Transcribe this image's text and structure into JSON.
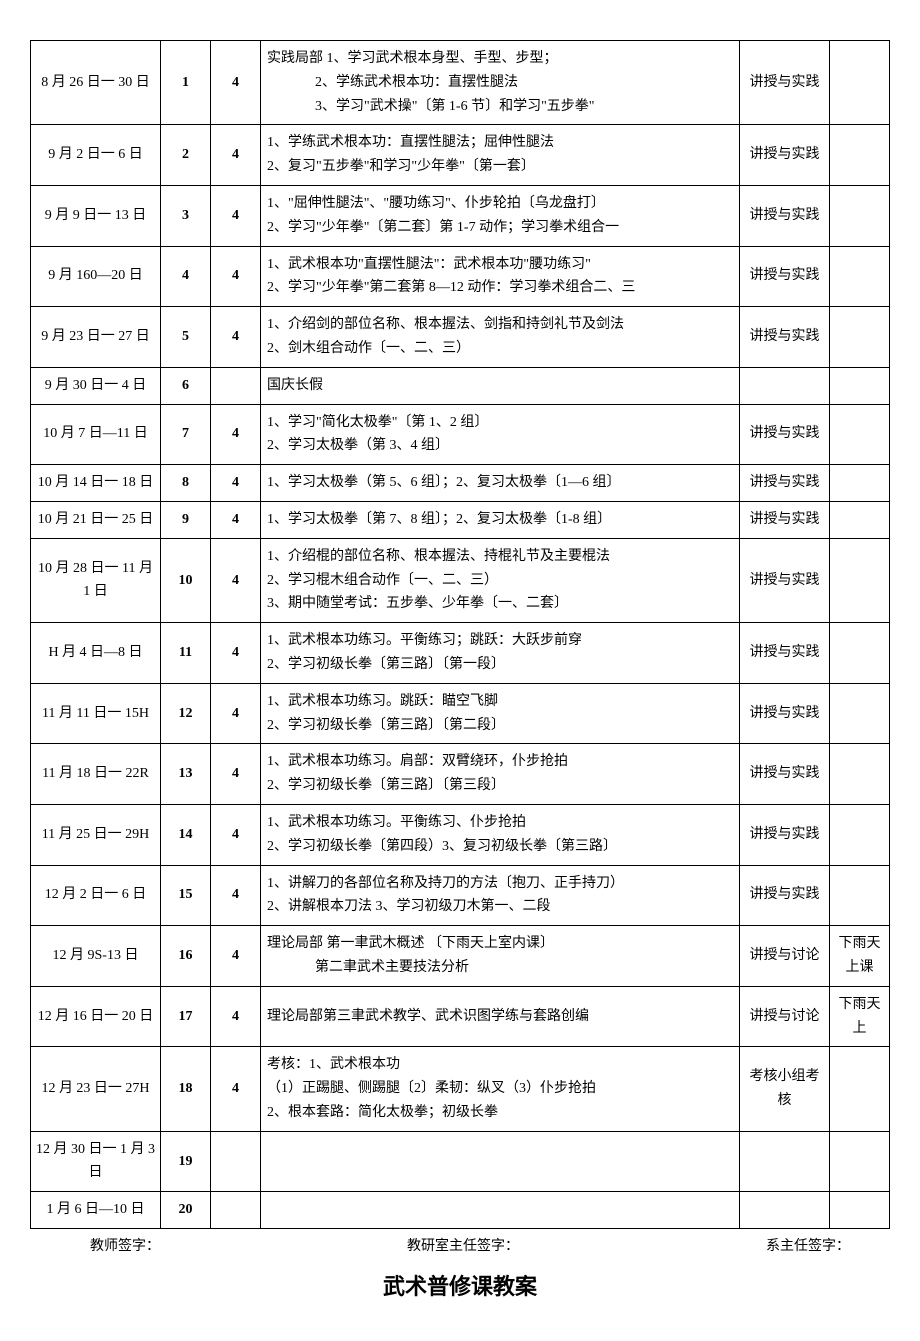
{
  "rows": [
    {
      "date": "8 月 26 日一 30 日",
      "week": "1",
      "hours": "4",
      "content": [
        "实践局部 1、学习武术根本身型、手型、步型；",
        "2、学练武术根本功：直摆性腿法",
        "3、学习\"武术操\"〔第 1-6 节〕和学习\"五步拳\""
      ],
      "content_indent": [
        false,
        true,
        true
      ],
      "method": "讲授与实践",
      "note": ""
    },
    {
      "date": "9 月 2 日一 6 日",
      "week": "2",
      "hours": "4",
      "content": [
        "1、学练武术根本功：直摆性腿法；屈伸性腿法",
        "2、复习\"五步拳\"和学习\"少年拳\"〔第一套〕"
      ],
      "method": "讲授与实践",
      "note": ""
    },
    {
      "date": "9 月 9 日一 13 日",
      "week": "3",
      "hours": "4",
      "content": [
        "1、\"屈伸性腿法\"、\"腰功练习\"、仆步轮拍〔乌龙盘打〕",
        "2、学习\"少年拳\"〔第二套〕第 1-7 动作；学习拳术组合一"
      ],
      "method": "讲授与实践",
      "note": ""
    },
    {
      "date": "9 月 160—20 日",
      "week": "4",
      "hours": "4",
      "content": [
        "1、武术根本功\"直摆性腿法\"：武术根本功\"腰功练习\"",
        "2、学习\"少年拳\"第二套第 8—12 动作：学习拳术组合二、三"
      ],
      "method": "讲授与实践",
      "note": ""
    },
    {
      "date": "9 月 23 日一 27 日",
      "week": "5",
      "hours": "4",
      "content": [
        "1、介绍剑的部位名称、根本握法、剑指和持剑礼节及剑法",
        "2、剑木组合动作〔一、二、三）"
      ],
      "method": "讲授与实践",
      "note": ""
    },
    {
      "date": "9 月 30 日一 4 日",
      "week": "6",
      "hours": "",
      "content": [
        "国庆长假"
      ],
      "method": "",
      "note": ""
    },
    {
      "date": "10 月 7 日—11 日",
      "week": "7",
      "hours": "4",
      "content": [
        "1、学习\"简化太极拳\"〔第 1、2 组〕",
        "2、学习太极拳（第 3、4 组〕"
      ],
      "method": "讲授与实践",
      "note": ""
    },
    {
      "date": "10 月 14 日一 18 日",
      "week": "8",
      "hours": "4",
      "content": [
        "1、学习太极拳（第 5、6 组〕；2、复习太极拳〔1—6 组〕"
      ],
      "method": "讲授与实践",
      "note": ""
    },
    {
      "date": "10 月 21 日一 25 日",
      "week": "9",
      "hours": "4",
      "content": [
        "1、学习太极拳〔第 7、8 组〕；2、复习太极拳〔1-8 组〕"
      ],
      "method": "讲授与实践",
      "note": ""
    },
    {
      "date": "10 月 28 日一 11 月 1 日",
      "week": "10",
      "hours": "4",
      "content": [
        "1、介绍棍的部位名称、根本握法、持棍礼节及主要棍法",
        "2、学习棍木组合动作〔一、二、三）",
        "3、期中随堂考试：五步拳、少年拳〔一、二套〕"
      ],
      "method": "讲授与实践",
      "note": ""
    },
    {
      "date": "H 月 4 日—8 日",
      "week": "11",
      "hours": "4",
      "content": [
        "1、武术根本功练习。平衡练习；跳跃：大跃步前穿",
        "2、学习初级长拳〔第三路〕〔第一段〕"
      ],
      "method": "讲授与实践",
      "note": ""
    },
    {
      "date": "11 月 11 日一 15H",
      "week": "12",
      "hours": "4",
      "content": [
        "1、武术根本功练习。跳跃：瞄空飞脚",
        "2、学习初级长拳〔第三路〕〔第二段〕"
      ],
      "method": "讲授与实践",
      "note": ""
    },
    {
      "date": "11 月 18 日一 22R",
      "week": "13",
      "hours": "4",
      "content": [
        "1、武术根本功练习。肩部：双臂绕环，仆步抢拍",
        "2、学习初级长拳〔第三路〕〔第三段〕"
      ],
      "method": "讲授与实践",
      "note": ""
    },
    {
      "date": "11 月 25 日一 29H",
      "week": "14",
      "hours": "4",
      "content": [
        "1、武术根本功练习。平衡练习、仆步抢拍",
        "2、学习初级长拳〔第四段）3、复习初级长拳〔第三路〕"
      ],
      "method": "讲授与实践",
      "note": ""
    },
    {
      "date": "12 月 2 日一 6 日",
      "week": "15",
      "hours": "4",
      "content": [
        "1、讲解刀的各部位名称及持刀的方法〔抱刀、正手持刀）",
        "2、讲解根本刀法 3、学习初级刀木第一、二段"
      ],
      "method": "讲授与实践",
      "note": ""
    },
    {
      "date": "12 月 9S-13 日",
      "week": "16",
      "hours": "4",
      "content": [
        "理论局部   第一聿武木概述    〔下雨天上室内课〕",
        "第二聿武术主要技法分析"
      ],
      "content_indent": [
        false,
        true
      ],
      "method": "讲授与讨论",
      "note": "下雨天上课"
    },
    {
      "date": "12 月 16 日一 20 日",
      "week": "17",
      "hours": "4",
      "content": [
        "理论局部第三聿武术教学、武术识图学练与套路创编"
      ],
      "method": "讲授与讨论",
      "note": "下雨天上"
    },
    {
      "date": "12 月 23 日一 27H",
      "week": "18",
      "hours": "4",
      "content": [
        "考核：1、武术根本功",
        "（1）正踢腿、侧踢腿〔2〕柔韧：纵叉（3）仆步抢拍",
        "  2、根本套路：简化太极拳；初级长拳"
      ],
      "method": "考核小组考核",
      "note": ""
    },
    {
      "date": "12 月 30 日一 1 月 3 日",
      "week": "19",
      "hours": "",
      "content": [
        ""
      ],
      "method": "",
      "note": ""
    },
    {
      "date": "1 月 6 日—10 日",
      "week": "20",
      "hours": "",
      "content": [
        ""
      ],
      "method": "",
      "note": ""
    }
  ],
  "signatures": {
    "teacher": "教师签字：",
    "office": "教研室主任签字：",
    "dean": "系主任签字："
  },
  "title": "武术普修课教案"
}
